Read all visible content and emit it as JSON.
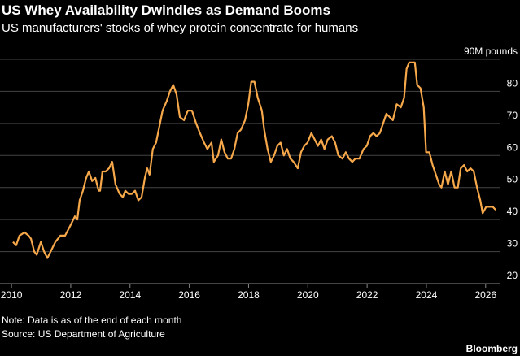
{
  "chart_data": {
    "type": "line",
    "title": "US Whey Availability Dwindles as Demand Booms",
    "subtitle": "US manufacturers' stocks of whey protein concentrate for humans",
    "note": "Note: Data is as of the end of each month",
    "source": "Source: US Department of Agriculture",
    "brand": "Bloomberg",
    "x": [
      2010.05,
      2010.16,
      2010.27,
      2010.44,
      2010.58,
      2010.66,
      2010.77,
      2010.85,
      2010.99,
      2011.1,
      2011.21,
      2011.32,
      2011.48,
      2011.65,
      2011.81,
      2011.98,
      2012.14,
      2012.22,
      2012.3,
      2012.41,
      2012.52,
      2012.61,
      2012.72,
      2012.83,
      2012.94,
      2012.99,
      2013.07,
      2013.18,
      2013.29,
      2013.4,
      2013.51,
      2013.65,
      2013.76,
      2013.84,
      2013.95,
      2014.06,
      2014.17,
      2014.28,
      2014.39,
      2014.5,
      2014.58,
      2014.66,
      2014.77,
      2014.88,
      2014.99,
      2015.1,
      2015.24,
      2015.35,
      2015.46,
      2015.57,
      2015.68,
      2015.82,
      2015.95,
      2016.09,
      2016.23,
      2016.36,
      2016.5,
      2016.61,
      2016.75,
      2016.83,
      2016.97,
      2017.08,
      2017.19,
      2017.3,
      2017.41,
      2017.52,
      2017.63,
      2017.74,
      2017.88,
      2017.99,
      2018.09,
      2018.2,
      2018.31,
      2018.45,
      2018.53,
      2018.64,
      2018.75,
      2018.86,
      2018.97,
      2019.08,
      2019.19,
      2019.3,
      2019.41,
      2019.52,
      2019.66,
      2019.77,
      2019.88,
      2019.99,
      2020.12,
      2020.23,
      2020.34,
      2020.45,
      2020.56,
      2020.67,
      2020.81,
      2020.92,
      2021.03,
      2021.17,
      2021.28,
      2021.39,
      2021.5,
      2021.6,
      2021.74,
      2021.88,
      2021.99,
      2022.1,
      2022.21,
      2022.32,
      2022.43,
      2022.54,
      2022.65,
      2022.76,
      2022.87,
      2023.0,
      2023.14,
      2023.25,
      2023.33,
      2023.42,
      2023.53,
      2023.61,
      2023.69,
      2023.8,
      2023.91,
      2023.99,
      2024.1,
      2024.21,
      2024.32,
      2024.43,
      2024.51,
      2024.62,
      2024.73,
      2024.84,
      2024.95,
      2025.06,
      2025.16,
      2025.27,
      2025.38,
      2025.49,
      2025.6,
      2025.71,
      2025.82,
      2025.9,
      2026.02,
      2026.13,
      2026.24,
      2026.34
    ],
    "series": [
      {
        "name": "Stocks",
        "color": "#f7a84a",
        "values": [
          33,
          32,
          35,
          36,
          35,
          34,
          30,
          29,
          33,
          30,
          28,
          30,
          33,
          35,
          35,
          38,
          41,
          40,
          46,
          49,
          53,
          55,
          52,
          53,
          49,
          49,
          55,
          55,
          56,
          58,
          51,
          48,
          47,
          49,
          48,
          48,
          49,
          46,
          47,
          53,
          56,
          54,
          62,
          64,
          69,
          74,
          77,
          80,
          82,
          79,
          72,
          71,
          74,
          74,
          70,
          67,
          64,
          62,
          64,
          58,
          60,
          65,
          61,
          59,
          59,
          62,
          67,
          68,
          71,
          76,
          83,
          83,
          78,
          74,
          68,
          62,
          58,
          60,
          63,
          64,
          60,
          62,
          59,
          58,
          56,
          61,
          63,
          64,
          67,
          65,
          63,
          65,
          62,
          65,
          66,
          64,
          60,
          59,
          61,
          59,
          58,
          59,
          59,
          62,
          63,
          66,
          67,
          66,
          67,
          70,
          73,
          72,
          71,
          76,
          75,
          78,
          87,
          89,
          89,
          89,
          82,
          81,
          75,
          61,
          61,
          57,
          54,
          51,
          50,
          55,
          51,
          55,
          50,
          50,
          56,
          57,
          55,
          56,
          55,
          50,
          46,
          42,
          44,
          44,
          44,
          43
        ]
      }
    ],
    "xlim": [
      2009.75,
      2026.5
    ],
    "xticks": [
      2010,
      2012,
      2014,
      2016,
      2018,
      2020,
      2022,
      2024,
      2026
    ],
    "ylim": [
      20,
      90
    ],
    "yticks": [
      20,
      30,
      40,
      50,
      60,
      70,
      80,
      {
        "value": 90,
        "label": "90M pounds"
      }
    ],
    "grid": true
  }
}
